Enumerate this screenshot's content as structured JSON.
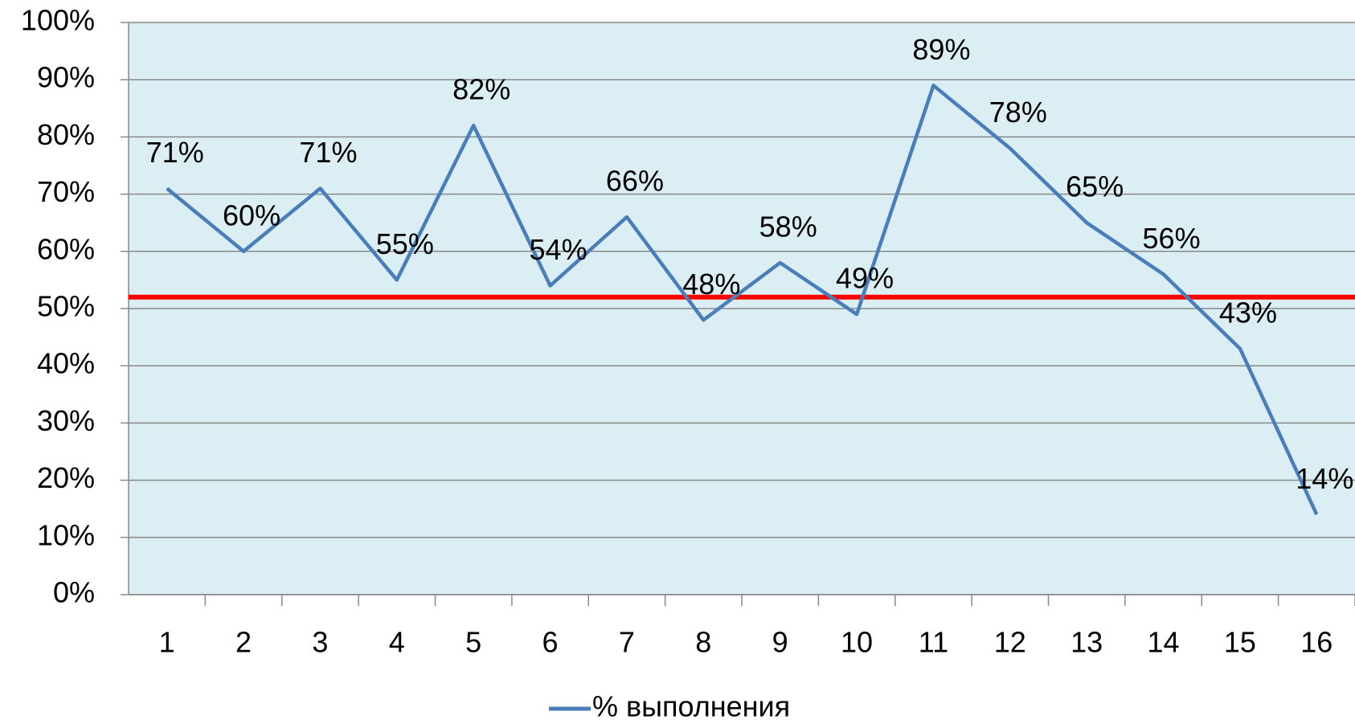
{
  "chart_data": {
    "type": "line",
    "categories": [
      "1",
      "2",
      "3",
      "4",
      "5",
      "6",
      "7",
      "8",
      "9",
      "10",
      "11",
      "12",
      "13",
      "14",
      "15",
      "16"
    ],
    "series": [
      {
        "name": "% выполнения",
        "color": "#4a7ebb",
        "values": [
          71,
          60,
          71,
          55,
          82,
          54,
          66,
          48,
          58,
          49,
          89,
          78,
          65,
          56,
          43,
          14
        ],
        "value_labels": [
          "71%",
          "60%",
          "71%",
          "55%",
          "82%",
          "54%",
          "66%",
          "48%",
          "58%",
          "49%",
          "89%",
          "78%",
          "65%",
          "56%",
          "43%",
          "14%"
        ]
      }
    ],
    "reference_line": {
      "value": 52,
      "color": "#ff0000"
    },
    "ylim": [
      0,
      100
    ],
    "yticks": [
      {
        "value": 0,
        "label": "0%"
      },
      {
        "value": 10,
        "label": "10%"
      },
      {
        "value": 20,
        "label": "20%"
      },
      {
        "value": 30,
        "label": "30%"
      },
      {
        "value": 40,
        "label": "40%"
      },
      {
        "value": 50,
        "label": "50%"
      },
      {
        "value": 60,
        "label": "60%"
      },
      {
        "value": 70,
        "label": "70%"
      },
      {
        "value": 80,
        "label": "80%"
      },
      {
        "value": 90,
        "label": "90%"
      },
      {
        "value": 100,
        "label": "100%"
      }
    ],
    "grid": true,
    "plot_background": "#dbeef4",
    "legend": "bottom"
  }
}
